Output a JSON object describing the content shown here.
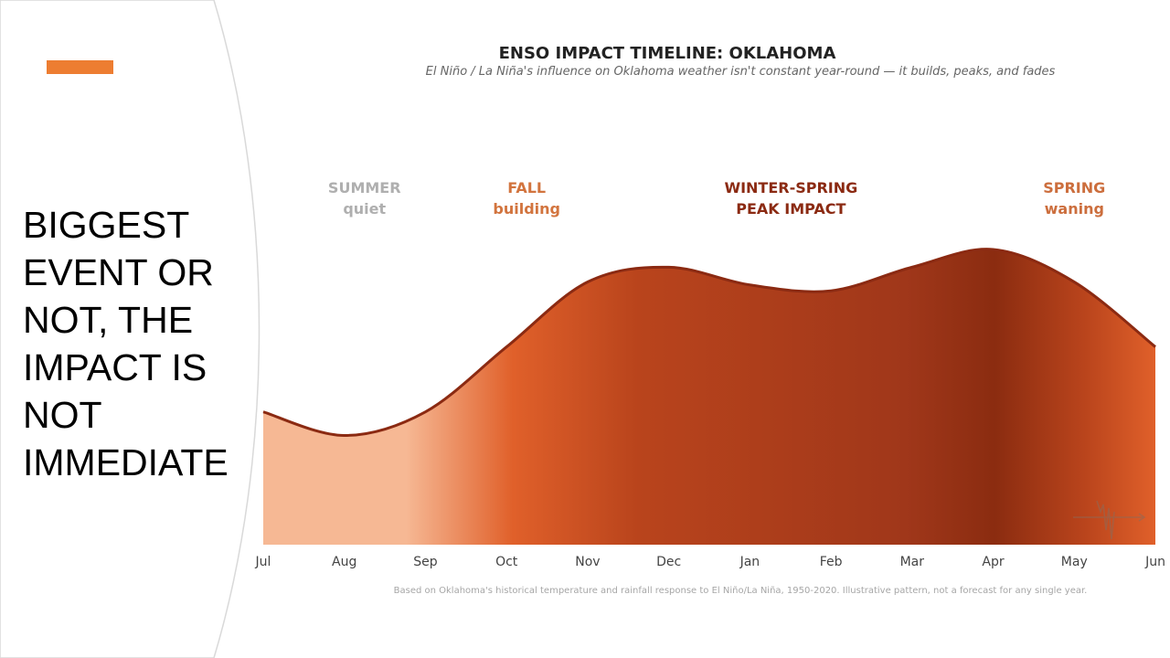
{
  "slide": {
    "headline": "BIGGEST\nEVENT OR\nNOT, THE\nIMPACT IS\nNOT\nIMMEDIATE",
    "accent_color": "#ED7D31"
  },
  "chart_data": {
    "type": "area",
    "title": "ENSO IMPACT TIMELINE: OKLAHOMA",
    "subtitle": "El Niño / La Niña's influence on Oklahoma weather isn't constant year-round — it builds, peaks, and fades",
    "xlabel": "",
    "ylabel": "",
    "categories": [
      "Jul",
      "Aug",
      "Sep",
      "Oct",
      "Nov",
      "Dec",
      "Jan",
      "Feb",
      "Mar",
      "Apr",
      "May",
      "Jun"
    ],
    "values": [
      0.45,
      0.37,
      0.45,
      0.67,
      0.89,
      0.94,
      0.88,
      0.86,
      0.94,
      1.0,
      0.89,
      0.67
    ],
    "ylim": [
      0,
      1
    ],
    "grid": false,
    "legend": "none",
    "annotations": [
      {
        "line1": "SUMMER",
        "line2": "quiet",
        "at": "Aug",
        "color": "#AFAFAF"
      },
      {
        "line1": "FALL",
        "line2": "building",
        "at": "Oct",
        "color": "#D2743E"
      },
      {
        "line1": "WINTER-SPRING",
        "line2": "PEAK IMPACT",
        "at": "Jan",
        "color": "#8B2A12"
      },
      {
        "line1": "SPRING",
        "line2": "waning",
        "at": "May",
        "color": "#CC6E3D"
      }
    ],
    "footnote": "Based on Oklahoma's historical temperature and rainfall response to El Niño/La Niña, 1950-2020. Illustrative pattern, not a forecast for any single year.",
    "colors": {
      "outline": "#8B2A12",
      "light": "#F6B894",
      "mid": "#E0602A",
      "dark": "#8B2C10",
      "axis_text": "#444444"
    }
  }
}
